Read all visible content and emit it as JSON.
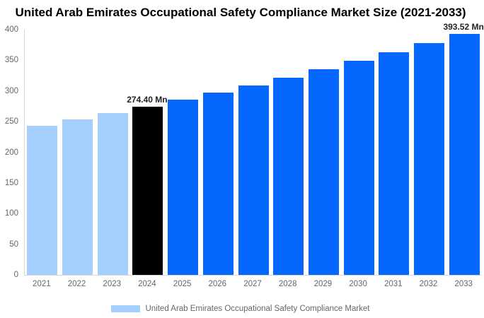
{
  "chart_data": {
    "type": "bar",
    "title": "United Arab Emirates Occupational Safety Compliance Market Size (2021-2033)",
    "unit": "Mn",
    "categories": [
      "2021",
      "2022",
      "2023",
      "2024",
      "2025",
      "2026",
      "2027",
      "2028",
      "2029",
      "2030",
      "2031",
      "2032",
      "2033"
    ],
    "values": [
      243.3,
      253.3,
      263.6,
      274.4,
      285.6,
      297.3,
      309.5,
      322.1,
      335.3,
      349.0,
      363.2,
      378.1,
      393.52
    ],
    "bar_roles": [
      "historical",
      "historical",
      "historical",
      "current",
      "forecast",
      "forecast",
      "forecast",
      "forecast",
      "forecast",
      "forecast",
      "forecast",
      "forecast",
      "forecast"
    ],
    "colors": {
      "historical": "#A5CFFC",
      "current": "#000000",
      "forecast": "#0667FE"
    },
    "ylim": [
      0,
      400
    ],
    "yticks": [
      0,
      50,
      100,
      150,
      200,
      250,
      300,
      350,
      400
    ],
    "xlabel": "",
    "ylabel": "",
    "grid": false,
    "annotations": [
      {
        "category": "2024",
        "label": "274.40 Mn"
      },
      {
        "category": "2033",
        "label": "393.52 Mn"
      }
    ],
    "legend_position": "bottom",
    "legend": [
      {
        "label": "United Arab Emirates Occupational Safety Compliance Market",
        "color": "#A5CFFC"
      }
    ],
    "axis": {
      "line_color": "#d8d8d8",
      "label_color": "#666666"
    }
  }
}
